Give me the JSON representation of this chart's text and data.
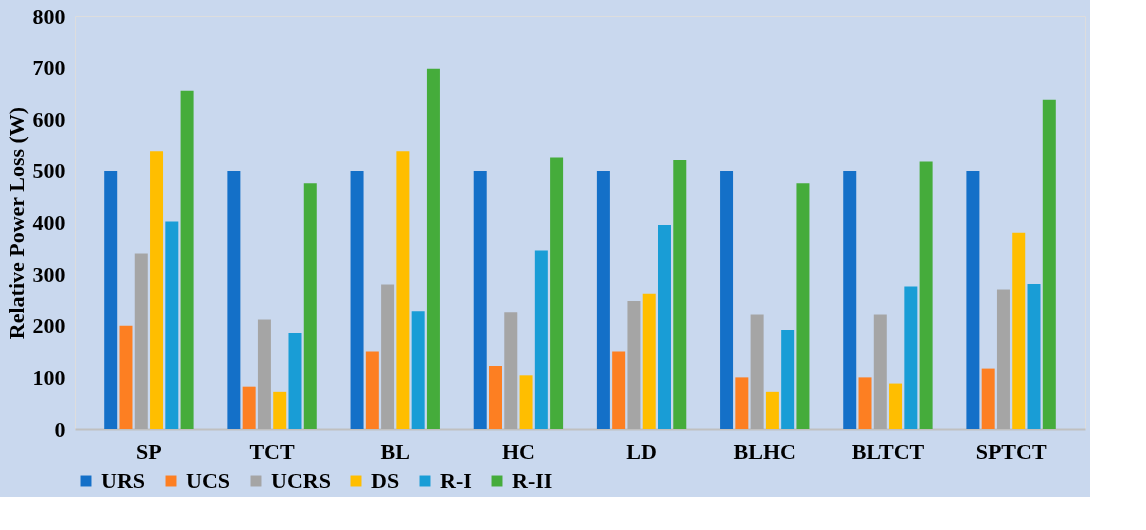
{
  "chart_data": {
    "type": "bar",
    "ylabel": "Relative Power Loss (W)",
    "categories": [
      "SP",
      "TCT",
      "BL",
      "HC",
      "LD",
      "BLHC",
      "BLTCT",
      "SPTCT"
    ],
    "series": [
      {
        "name": "URS",
        "color": "#1470c8",
        "values": [
          500,
          500,
          500,
          500,
          500,
          500,
          500,
          500
        ]
      },
      {
        "name": "UCS",
        "color": "#fd7f22",
        "values": [
          200,
          82,
          150,
          122,
          150,
          100,
          100,
          117
        ]
      },
      {
        "name": "UCRS",
        "color": "#a5a5a5",
        "values": [
          340,
          212,
          280,
          226,
          248,
          222,
          222,
          270
        ]
      },
      {
        "name": "DS",
        "color": "#ffbe00",
        "values": [
          538,
          72,
          538,
          104,
          262,
          72,
          88,
          380
        ]
      },
      {
        "name": "R-I",
        "color": "#199dd6",
        "values": [
          402,
          186,
          228,
          346,
          395,
          192,
          276,
          281
        ]
      },
      {
        "name": "R-II",
        "color": "#45ac3b",
        "values": [
          655,
          476,
          698,
          526,
          521,
          476,
          518,
          638
        ]
      }
    ],
    "ylim": [
      0,
      800
    ],
    "yticks": [
      0,
      100,
      200,
      300,
      400,
      500,
      600,
      700,
      800
    ],
    "grid": false,
    "legend": "bottom"
  }
}
